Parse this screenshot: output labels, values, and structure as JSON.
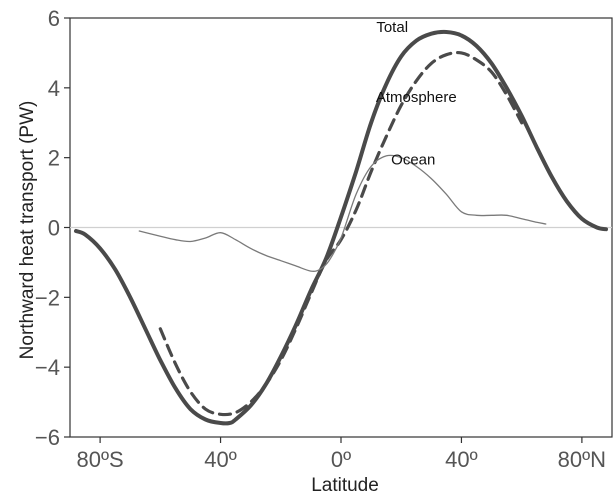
{
  "chart_data": {
    "type": "line",
    "title": "",
    "xlabel": "Latitude",
    "ylabel": "Northward heat transport (PW)",
    "xlim": [
      -90,
      90
    ],
    "ylim": [
      -6,
      6
    ],
    "grid": false,
    "x_ticks": [
      {
        "value": -80,
        "label": "80ºS"
      },
      {
        "value": -40,
        "label": "40º"
      },
      {
        "value": 0,
        "label": "0º"
      },
      {
        "value": 40,
        "label": "40º"
      },
      {
        "value": 80,
        "label": "80ºN"
      }
    ],
    "y_ticks": [
      {
        "value": 6,
        "label": "6"
      },
      {
        "value": 4,
        "label": "4"
      },
      {
        "value": 2,
        "label": "2"
      },
      {
        "value": 0,
        "label": "0"
      },
      {
        "value": -2,
        "label": "−2"
      },
      {
        "value": -4,
        "label": "−4"
      },
      {
        "value": -6,
        "label": "−6"
      }
    ],
    "zero_line": true,
    "series": [
      {
        "name": "Total",
        "color": "#4a4a4a",
        "style": "solid-thick",
        "label_at": {
          "x": 17,
          "y": 5.6
        },
        "x": [
          -88,
          -85,
          -80,
          -75,
          -70,
          -65,
          -60,
          -55,
          -50,
          -45,
          -40,
          -37,
          -35,
          -30,
          -25,
          -20,
          -15,
          -10,
          -5,
          0,
          5,
          10,
          15,
          20,
          25,
          30,
          35,
          40,
          45,
          50,
          55,
          60,
          65,
          70,
          75,
          80,
          85,
          88
        ],
        "y": [
          -0.1,
          -0.2,
          -0.6,
          -1.2,
          -2.0,
          -2.9,
          -3.8,
          -4.6,
          -5.2,
          -5.5,
          -5.6,
          -5.6,
          -5.5,
          -5.1,
          -4.5,
          -3.7,
          -2.8,
          -1.8,
          -0.9,
          0.3,
          1.6,
          3.0,
          4.1,
          4.9,
          5.35,
          5.55,
          5.6,
          5.5,
          5.2,
          4.7,
          4.0,
          3.2,
          2.3,
          1.45,
          0.75,
          0.25,
          0.0,
          -0.05
        ]
      },
      {
        "name": "Atmosphere",
        "color": "#4a4a4a",
        "style": "dashed-thick",
        "label_at": {
          "x": 25,
          "y": 3.6
        },
        "x": [
          -60,
          -55,
          -50,
          -45,
          -40,
          -35,
          -30,
          -25,
          -20,
          -15,
          -10,
          -5,
          0,
          5,
          10,
          15,
          20,
          25,
          30,
          35,
          40,
          45,
          50,
          55,
          60
        ],
        "y": [
          -2.9,
          -3.9,
          -4.7,
          -5.2,
          -5.35,
          -5.3,
          -5.0,
          -4.5,
          -3.8,
          -2.9,
          -1.9,
          -0.95,
          -0.35,
          0.5,
          1.6,
          2.6,
          3.5,
          4.2,
          4.7,
          4.95,
          5.0,
          4.8,
          4.45,
          3.8,
          3.0
        ]
      },
      {
        "name": "Ocean",
        "color": "#7a7a7a",
        "style": "solid-thin",
        "label_at": {
          "x": 24,
          "y": 1.8
        },
        "x": [
          -67,
          -60,
          -55,
          -50,
          -45,
          -40,
          -35,
          -30,
          -25,
          -20,
          -15,
          -10,
          -7,
          -4,
          0,
          5,
          10,
          15,
          20,
          25,
          30,
          35,
          40,
          45,
          50,
          55,
          60,
          65,
          68
        ],
        "y": [
          -0.1,
          -0.25,
          -0.35,
          -0.4,
          -0.3,
          -0.15,
          -0.35,
          -0.6,
          -0.8,
          -0.95,
          -1.1,
          -1.25,
          -1.2,
          -0.95,
          -0.3,
          0.95,
          1.75,
          2.05,
          2.0,
          1.75,
          1.4,
          0.95,
          0.45,
          0.35,
          0.35,
          0.35,
          0.25,
          0.15,
          0.1
        ]
      }
    ]
  }
}
